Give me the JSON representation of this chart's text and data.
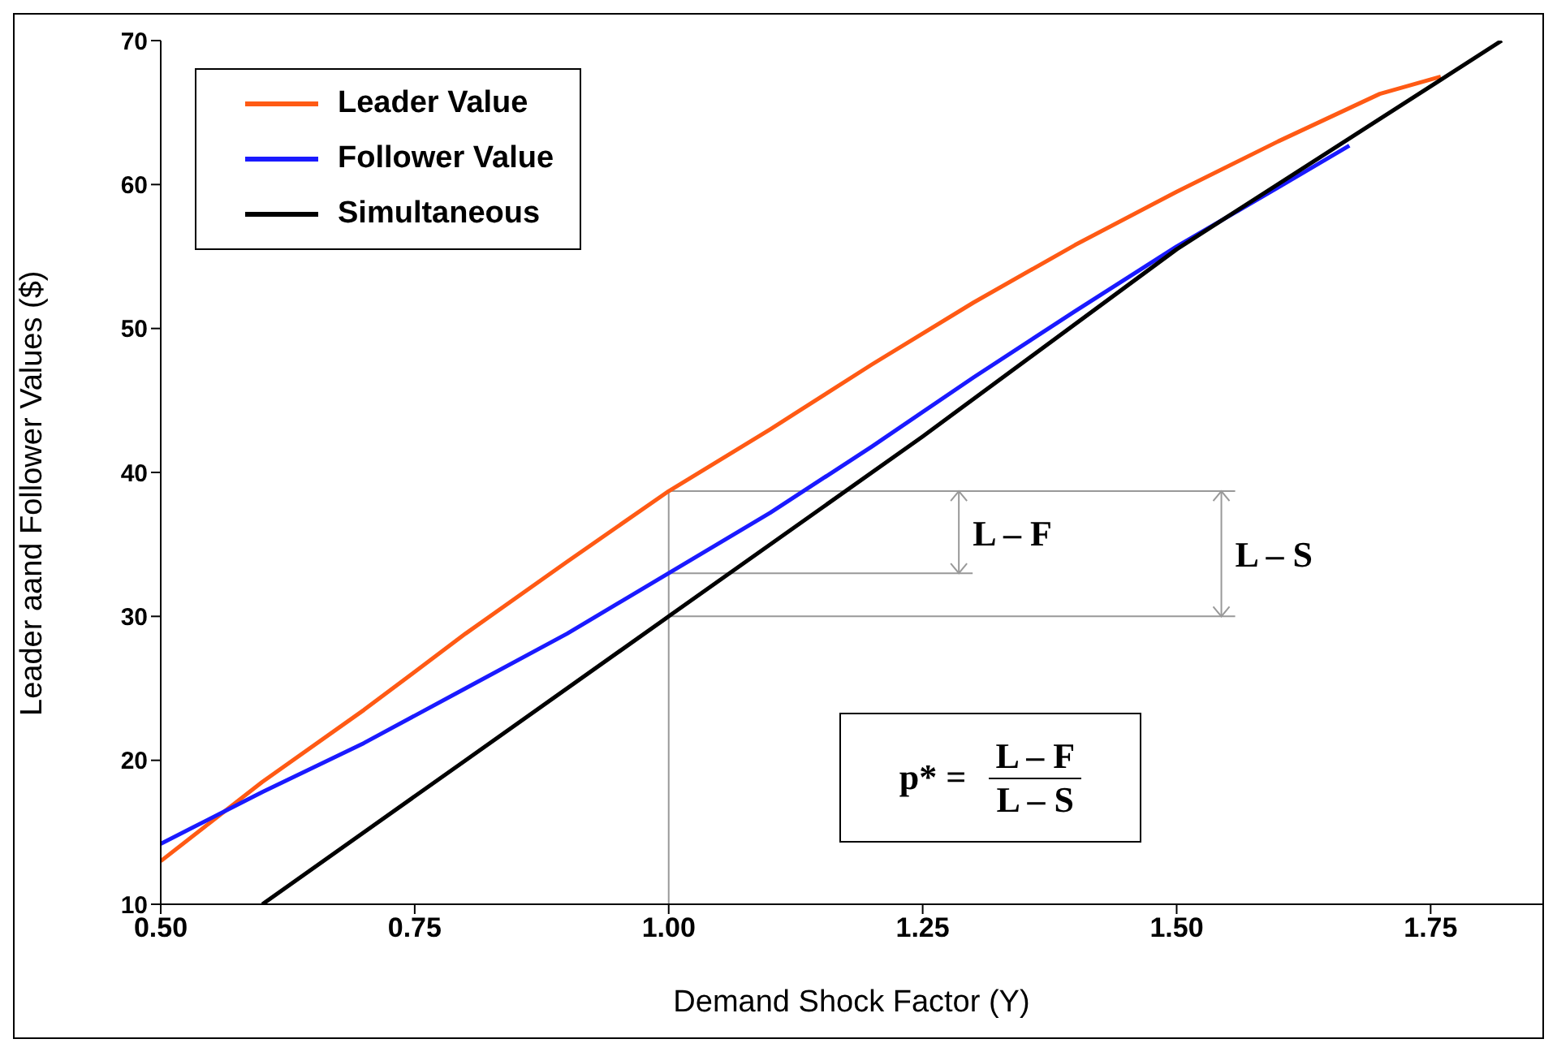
{
  "chart_data": {
    "type": "line",
    "xlabel": "Demand Shock Factor (Y)",
    "ylabel": "Leader aand Follower Values ($)",
    "series": [
      {
        "name": "Leader Value",
        "color": "#ff5a14",
        "x": [
          0.5,
          0.6,
          0.7,
          0.8,
          0.9,
          1.0,
          1.1,
          1.2,
          1.3,
          1.4,
          1.5,
          1.6,
          1.7,
          1.76
        ],
        "values": [
          13,
          18.5,
          23.5,
          28.8,
          33.8,
          38.7,
          43,
          47.5,
          51.8,
          55.8,
          59.5,
          63,
          66.3,
          67.5
        ]
      },
      {
        "name": "Follower Value",
        "color": "#1a1aff",
        "x": [
          0.5,
          0.6,
          0.7,
          0.8,
          0.9,
          1.0,
          1.1,
          1.2,
          1.3,
          1.4,
          1.5,
          1.6,
          1.67
        ],
        "values": [
          14.2,
          17.8,
          21.2,
          25,
          28.8,
          33,
          37.2,
          41.8,
          46.6,
          51.2,
          55.7,
          59.8,
          62.7
        ]
      },
      {
        "name": "Simultaneous",
        "color": "#000000",
        "x": [
          0.6,
          0.8,
          1.0,
          1.25,
          1.5,
          1.82
        ],
        "values": [
          10,
          20,
          30,
          42.5,
          55.5,
          70
        ]
      }
    ],
    "xlim": [
      0.5,
      1.86
    ],
    "xticks": [
      {
        "value": 0.5,
        "label": "0.50"
      },
      {
        "value": 0.75,
        "label": "0.75"
      },
      {
        "value": 1.0,
        "label": "1.00"
      },
      {
        "value": 1.25,
        "label": "1.25"
      },
      {
        "value": 1.5,
        "label": "1.50"
      },
      {
        "value": 1.75,
        "label": "1.75"
      }
    ],
    "ylim": [
      10,
      70
    ],
    "yticks": [
      10,
      20,
      30,
      40,
      50,
      60,
      70
    ],
    "ref_lines": [
      {
        "axis": "x",
        "value": 1.0,
        "color": "#999999"
      }
    ],
    "annotations": [
      {
        "text": "L – F",
        "x": 1.0,
        "y": 33
      },
      {
        "text": "L – S",
        "x": 1.0,
        "y": 30
      },
      "p* =",
      "L – F",
      "L – S"
    ],
    "legend": "top left",
    "grid": false,
    "marker": "none",
    "line_style": "solid"
  }
}
